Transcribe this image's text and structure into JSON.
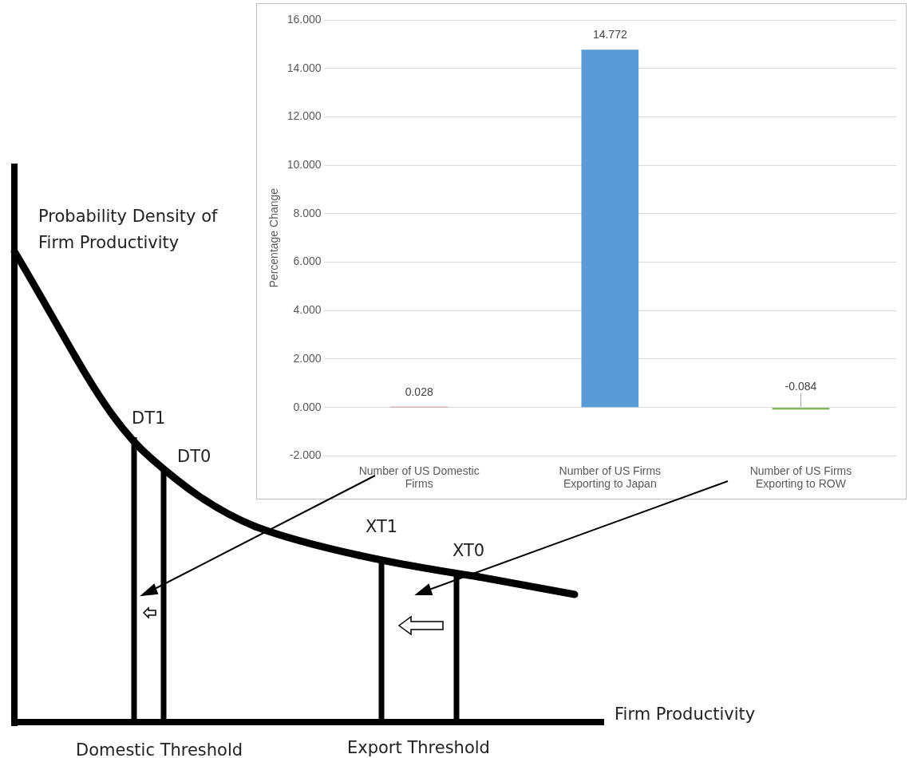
{
  "chart_data": {
    "type": "bar",
    "ylabel": "Percentage Change",
    "categories": [
      "Number of US Domestic Firms",
      "Number of US Firms Exporting to Japan",
      "Number of US Firms Exporting to ROW"
    ],
    "values": [
      0.028,
      14.772,
      -0.084
    ],
    "colors": [
      "#c0504d",
      "#5b9bd5",
      "#70ad47"
    ],
    "ylim": [
      -2,
      16
    ],
    "yticks": [
      {
        "value": -2,
        "label": "-2.000"
      },
      {
        "value": 0,
        "label": "0.000"
      },
      {
        "value": 2,
        "label": "2.000"
      },
      {
        "value": 4,
        "label": "4.000"
      },
      {
        "value": 6,
        "label": "6.000"
      },
      {
        "value": 8,
        "label": "8.000"
      },
      {
        "value": 10,
        "label": "10.000"
      },
      {
        "value": 12,
        "label": "12.000"
      },
      {
        "value": 14,
        "label": "14.000"
      },
      {
        "value": 16,
        "label": "16.000"
      }
    ],
    "data_labels": true,
    "grid": "y",
    "annotations": [
      "Probability Density of Firm Productivity",
      "DT1",
      "DT0",
      "XT1",
      "XT0",
      "Firm Productivity",
      "Domestic Threshold",
      "Export Threshold"
    ]
  }
}
